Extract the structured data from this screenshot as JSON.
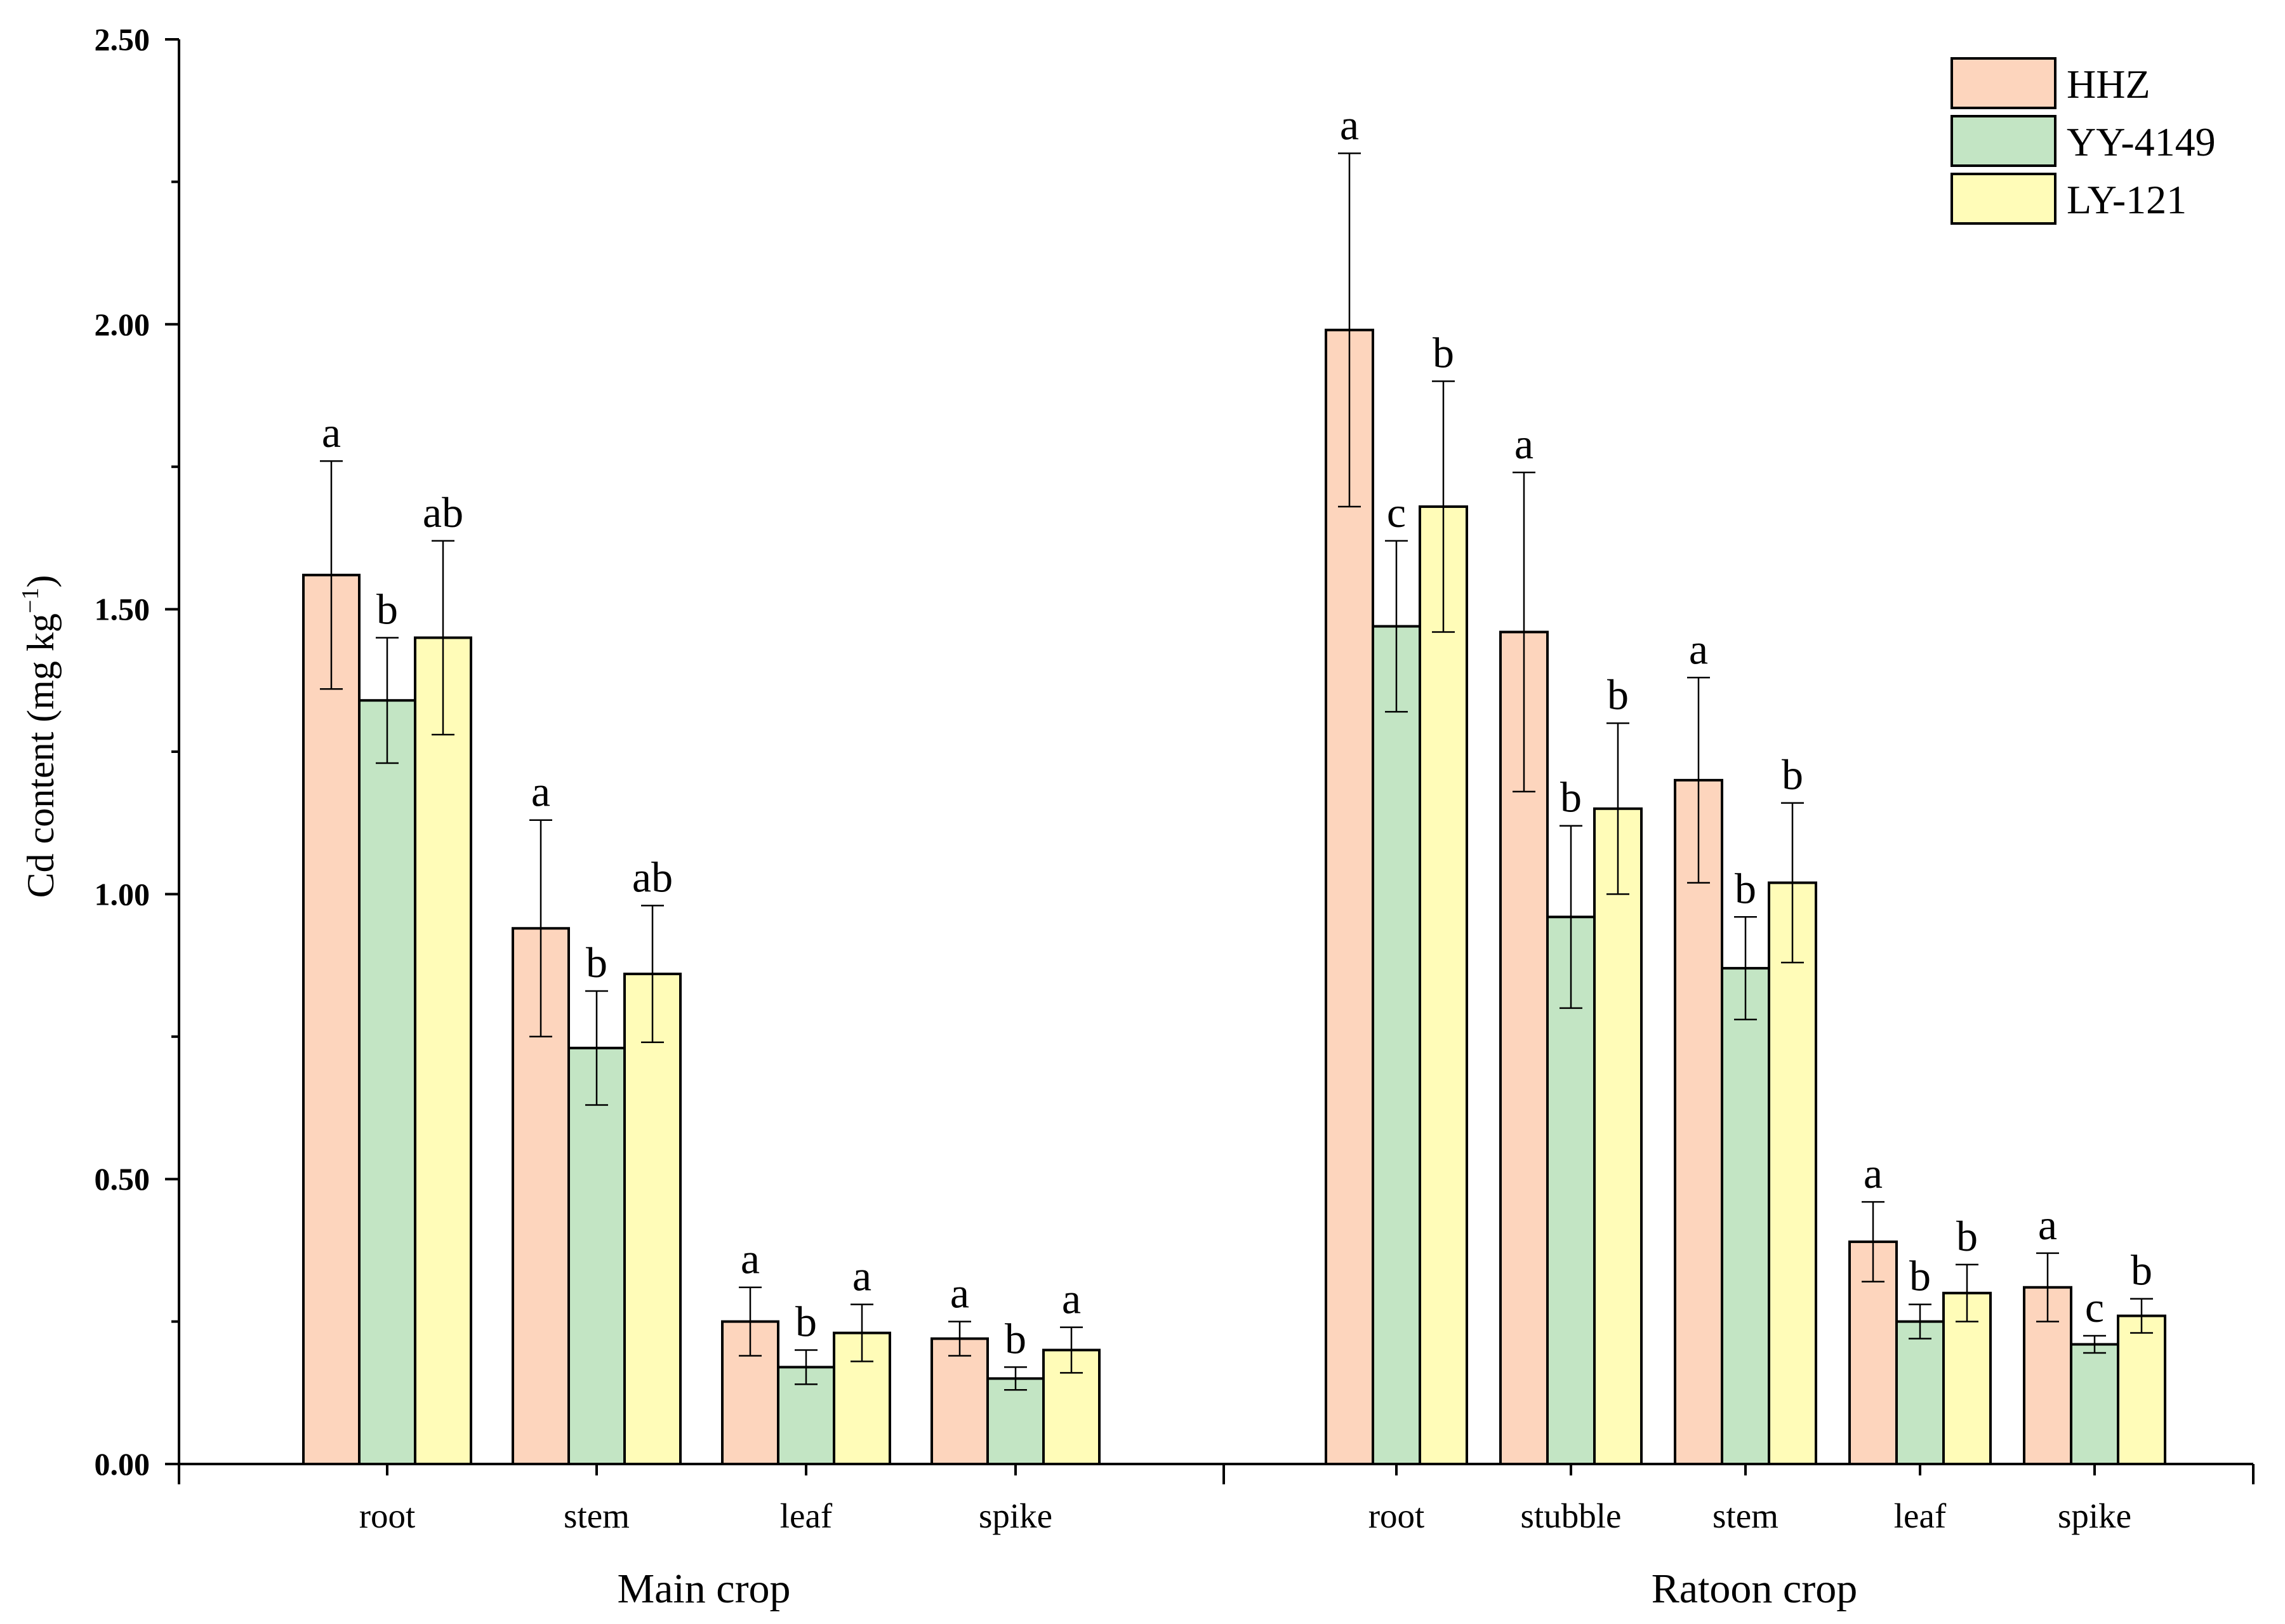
{
  "chart_data": {
    "type": "bar",
    "title": "",
    "ylabel": "Cd content (mg kg",
    "ylabel_superscript": "−1",
    "ylabel_close": ")",
    "ylim": [
      0,
      2.5
    ],
    "yticks": [
      "0.00",
      "0.50",
      "1.00",
      "1.50",
      "2.00",
      "2.50"
    ],
    "legend": {
      "position": "top-right",
      "entries": [
        "HHZ",
        "YY-4149",
        "LY-121"
      ]
    },
    "colors": {
      "HHZ": "#fdd5bd",
      "YY-4149": "#c3e5c4",
      "LY-121": "#fffcb8",
      "outline": "#000000"
    },
    "groups": [
      {
        "name": "Main crop",
        "categories": [
          "root",
          "stem",
          "leaf",
          "spike"
        ],
        "series": [
          {
            "name": "HHZ",
            "values": [
              1.56,
              0.94,
              0.25,
              0.22
            ],
            "errors": [
              0.2,
              0.19,
              0.06,
              0.03
            ],
            "letters": [
              "a",
              "a",
              "a",
              "a"
            ]
          },
          {
            "name": "YY-4149",
            "values": [
              1.34,
              0.73,
              0.17,
              0.15
            ],
            "errors": [
              0.11,
              0.1,
              0.03,
              0.02
            ],
            "letters": [
              "b",
              "b",
              "b",
              "b"
            ]
          },
          {
            "name": "LY-121",
            "values": [
              1.45,
              0.86,
              0.23,
              0.2
            ],
            "errors": [
              0.17,
              0.12,
              0.05,
              0.04
            ],
            "letters": [
              "ab",
              "ab",
              "a",
              "a"
            ]
          }
        ]
      },
      {
        "name": "Ratoon crop",
        "categories": [
          "root",
          "stubble",
          "stem",
          "leaf",
          "spike"
        ],
        "series": [
          {
            "name": "HHZ",
            "values": [
              1.99,
              1.46,
              1.2,
              0.39,
              0.31
            ],
            "errors": [
              0.31,
              0.28,
              0.18,
              0.07,
              0.06
            ],
            "letters": [
              "a",
              "a",
              "a",
              "a",
              "a"
            ]
          },
          {
            "name": "YY-4149",
            "values": [
              1.47,
              0.96,
              0.87,
              0.25,
              0.21
            ],
            "errors": [
              0.15,
              0.16,
              0.09,
              0.03,
              0.015
            ],
            "letters": [
              "c",
              "b",
              "b",
              "b",
              "c"
            ]
          },
          {
            "name": "LY-121",
            "values": [
              1.68,
              1.15,
              1.02,
              0.3,
              0.26
            ],
            "errors": [
              0.22,
              0.15,
              0.14,
              0.05,
              0.03
            ],
            "letters": [
              "b",
              "b",
              "b",
              "b",
              "b"
            ]
          }
        ]
      }
    ]
  }
}
